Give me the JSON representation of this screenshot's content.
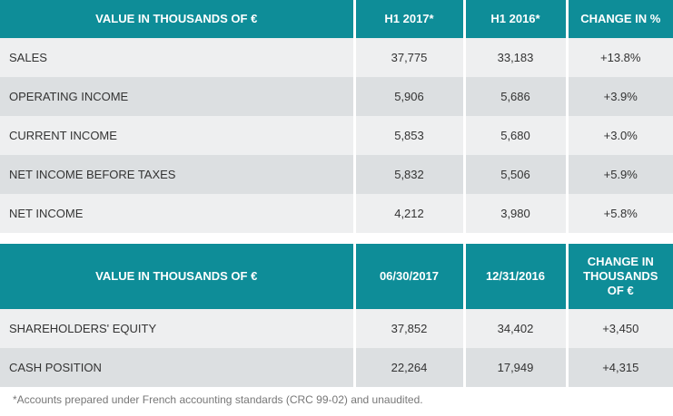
{
  "table1": {
    "headers": [
      "VALUE IN THOUSANDS OF €",
      "H1 2017*",
      "H1 2016*",
      "CHANGE IN %"
    ],
    "rows": [
      [
        "SALES",
        "37,775",
        "33,183",
        "+13.8%"
      ],
      [
        "OPERATING INCOME",
        "5,906",
        "5,686",
        "+3.9%"
      ],
      [
        "CURRENT INCOME",
        "5,853",
        "5,680",
        "+3.0%"
      ],
      [
        "NET INCOME BEFORE TAXES",
        "5,832",
        "5,506",
        "+5.9%"
      ],
      [
        "NET INCOME",
        "4,212",
        "3,980",
        "+5.8%"
      ]
    ]
  },
  "table2": {
    "headers": [
      "VALUE IN THOUSANDS OF €",
      "06/30/2017",
      "12/31/2016",
      "CHANGE IN THOUSANDS OF €"
    ],
    "rows": [
      [
        "SHAREHOLDERS' EQUITY",
        "37,852",
        "34,402",
        "+3,450"
      ],
      [
        "CASH POSITION",
        "22,264",
        "17,949",
        "+4,315"
      ]
    ]
  },
  "footnote": "*Accounts prepared under French accounting standards (CRC 99-02) and unaudited.",
  "colors": {
    "header_bg": "#0e8d98",
    "row_light": "#eeeff0",
    "row_dark": "#dcdfe1"
  }
}
